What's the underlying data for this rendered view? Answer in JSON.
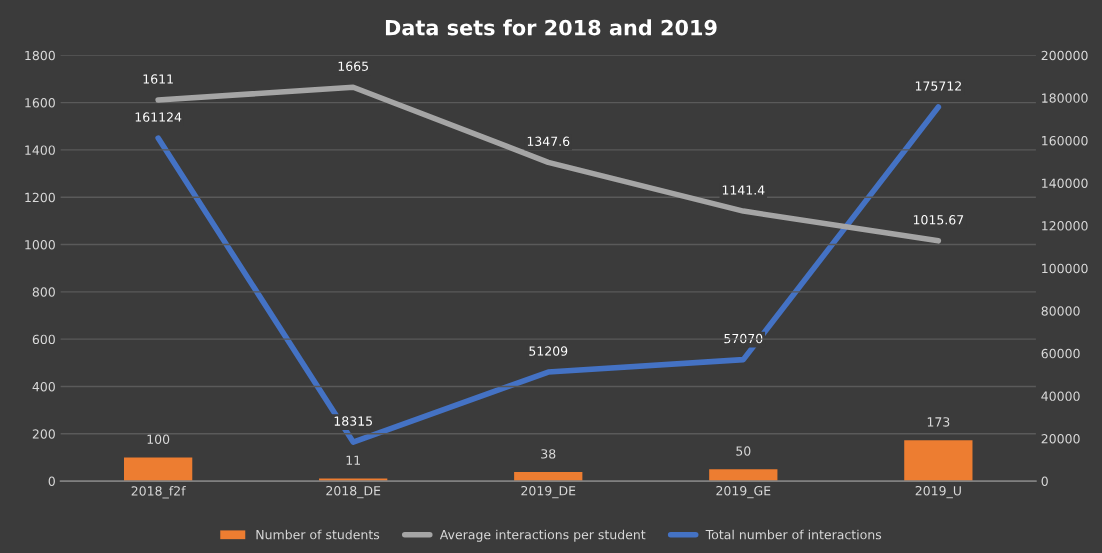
{
  "chart_data": {
    "type": "bar",
    "title": "Data sets for 2018 and 2019",
    "categories": [
      "2018_f2f",
      "2018_DE",
      "2019_DE",
      "2019_GE",
      "2019_U"
    ],
    "series": [
      {
        "name": "Number of students",
        "color": "#ed7d31",
        "values": [
          100,
          11,
          38,
          50,
          173
        ]
      },
      {
        "name": "Average interactions per student",
        "type": "line",
        "color": "#a5a5a5",
        "values": [
          1611,
          1665,
          1347.6,
          1141.4,
          1015.67
        ]
      },
      {
        "name": "Total number of interactions",
        "type": "line",
        "axis": "y2",
        "color": "#4472c4",
        "values": [
          161124,
          18315,
          51209,
          57070,
          175712
        ]
      }
    ],
    "ylim": [
      0,
      1800
    ],
    "yticks": [
      0,
      200,
      400,
      600,
      800,
      1000,
      1200,
      1400,
      1600,
      1800
    ],
    "y2lim": [
      0,
      200000
    ],
    "y2ticks": [
      0,
      20000,
      40000,
      60000,
      80000,
      100000,
      120000,
      140000,
      160000,
      180000,
      200000
    ],
    "grid": "y",
    "legend": "bottom",
    "data_labels": true,
    "marker": "none",
    "line_style": "solid"
  }
}
